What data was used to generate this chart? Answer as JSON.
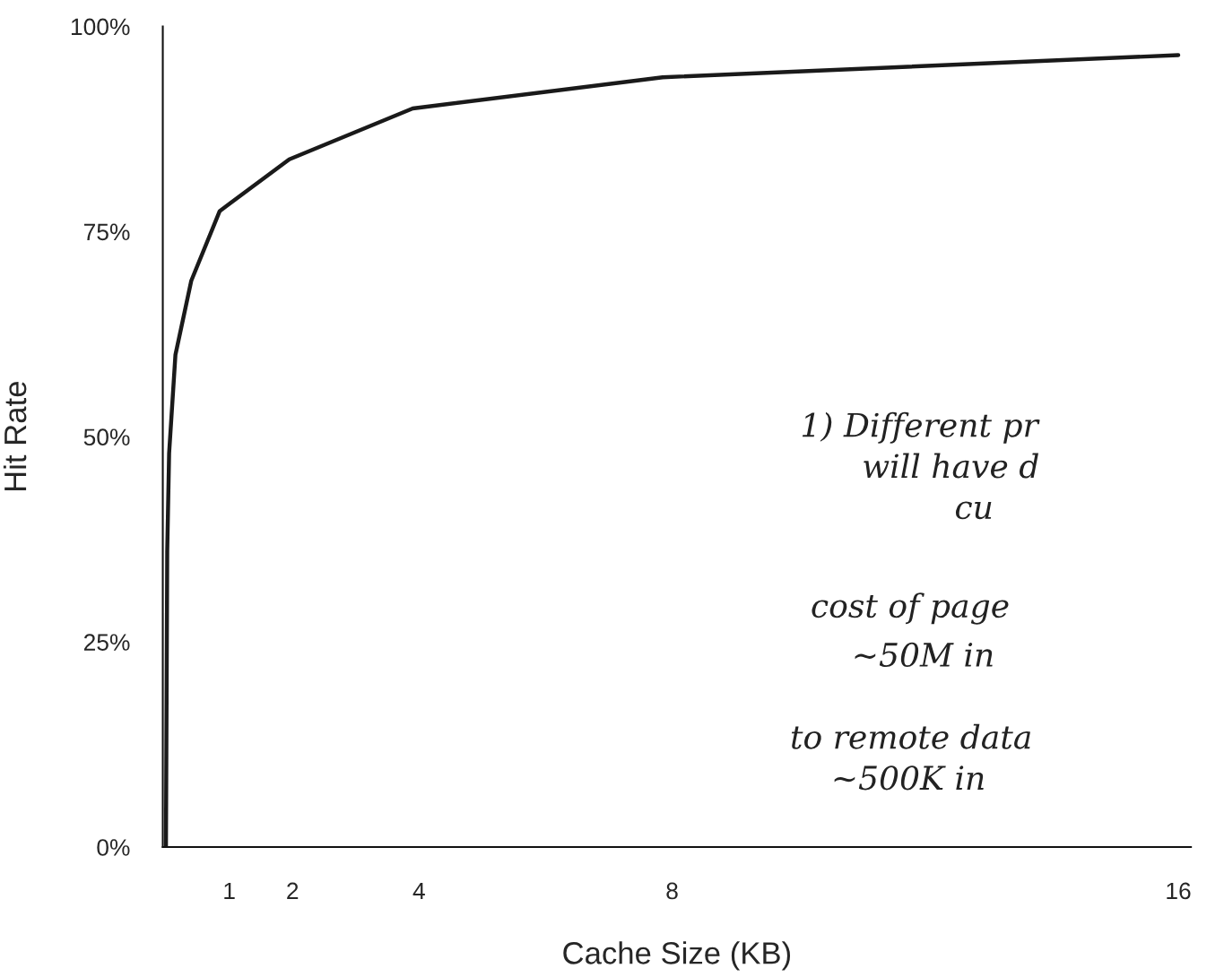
{
  "chart_data": {
    "type": "line",
    "xlabel": "Cache Size (KB)",
    "ylabel": "Hit Rate",
    "x": [
      0,
      0.02,
      0.05,
      0.15,
      0.4,
      0.85,
      1.95,
      3.9,
      7.85,
      16
    ],
    "series": [
      {
        "color": "#1a1a1a",
        "values": [
          0,
          36,
          48,
          60,
          69,
          77.5,
          83.8,
          90,
          93.8,
          96.5
        ]
      }
    ],
    "xlim": [
      -0.05,
      16.2
    ],
    "xticks": [
      1,
      2,
      4,
      8,
      16
    ],
    "ylim": [
      0,
      100
    ],
    "yticks": [
      {
        "value": 0,
        "label": "0%"
      },
      {
        "value": 25,
        "label": "25%"
      },
      {
        "value": 50,
        "label": "50%"
      },
      {
        "value": 75,
        "label": "75%"
      },
      {
        "value": 100,
        "label": "100%"
      }
    ],
    "grid": false,
    "marker": "none",
    "line_style": "solid",
    "annotations": [
      "1) Different pr",
      "will have d",
      "cu",
      "cost of page",
      "~50M in",
      "to remote data",
      "~500K in"
    ]
  }
}
